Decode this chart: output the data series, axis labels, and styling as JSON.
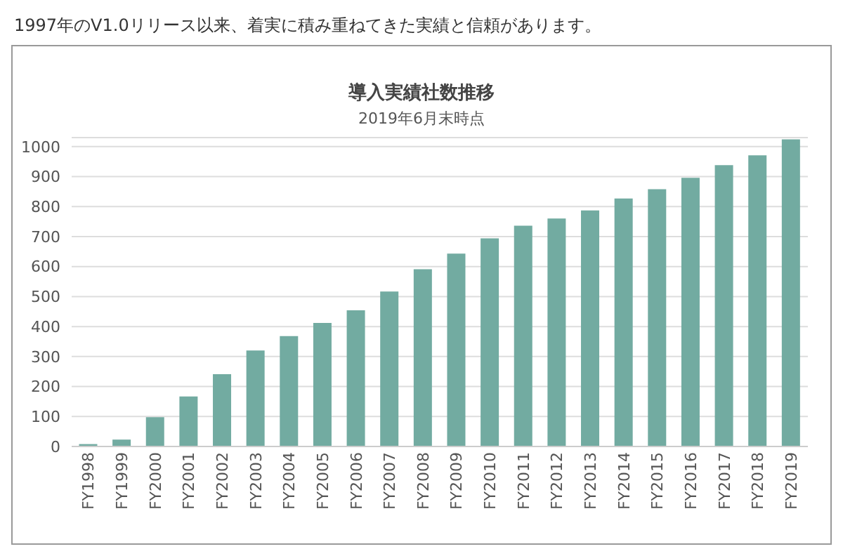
{
  "chart_data": {
    "type": "bar",
    "title": "導入実績社数推移",
    "subtitle": "2019年6月末時点",
    "annotations": [
      "1997年のV1.0リリース以来、着実に積み重ねてきた実績と信頼があります。"
    ],
    "categories": [
      "FY1998",
      "FY1999",
      "FY2000",
      "FY2001",
      "FY2002",
      "FY2003",
      "FY2004",
      "FY2005",
      "FY2006",
      "FY2007",
      "FY2008",
      "FY2009",
      "FY2010",
      "FY2011",
      "FY2012",
      "FY2013",
      "FY2014",
      "FY2015",
      "FY2016",
      "FY2017",
      "FY2018",
      "FY2019"
    ],
    "values": [
      8,
      23,
      98,
      167,
      241,
      320,
      368,
      412,
      454,
      517,
      591,
      643,
      694,
      736,
      760,
      787,
      827,
      858,
      896,
      938,
      971,
      1024
    ],
    "color": "#72aba1",
    "ylim": [
      0,
      1030
    ],
    "yticks": [
      0,
      100,
      200,
      300,
      400,
      500,
      600,
      700,
      800,
      900,
      1000
    ],
    "grid": "y"
  }
}
